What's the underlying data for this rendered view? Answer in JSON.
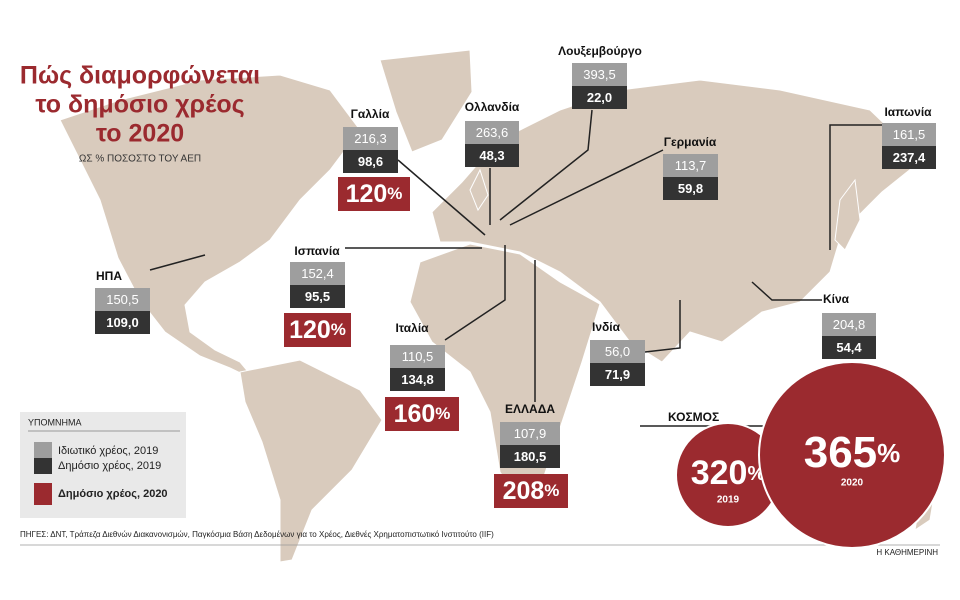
{
  "title": [
    "Πώς διαμορφώνεται",
    "το δημόσιο χρέος",
    "το 2020"
  ],
  "subtitle": "ΩΣ % ΠΟΣΟΣΤΟ ΤΟΥ ΑΕΠ",
  "countries": [
    {
      "name": "Γαλλία",
      "private": "216,3",
      "public": "98,6",
      "public_2020": {
        "value": "120",
        "unit": "%"
      }
    },
    {
      "name": "Ολλανδία",
      "private": "263,6",
      "public": "48,3"
    },
    {
      "name": "Λουξεμβούργο",
      "private": "393,5",
      "public": "22,0"
    },
    {
      "name": "Γερμανία",
      "private": "113,7",
      "public": "59,8"
    },
    {
      "name": "Ιαπωνία",
      "private": "161,5",
      "public": "237,4"
    },
    {
      "name": "Ισπανία",
      "private": "152,4",
      "public": "95,5",
      "public_2020": {
        "value": "120",
        "unit": "%"
      }
    },
    {
      "name": "ΗΠΑ",
      "private": "150,5",
      "public": "109,0"
    },
    {
      "name": "Κίνα",
      "private": "204,8",
      "public": "54,4"
    },
    {
      "name": "Ινδία",
      "private": "56,0",
      "public": "71,9"
    },
    {
      "name": "Ιταλία",
      "private": "110,5",
      "public": "134,8",
      "public_2020": {
        "value": "160",
        "unit": "%"
      }
    },
    {
      "name": "ΕΛΛΑΔΑ",
      "private": "107,9",
      "public": "180,5",
      "public_2020": {
        "value": "208",
        "unit": "%"
      }
    }
  ],
  "legend": {
    "title": "ΥΠΟΜΝΗΜΑ",
    "items": [
      "Ιδιωτικό χρέος, 2019",
      "Δημόσιο χρέος, 2019",
      "Δημόσιο χρέος, 2020"
    ]
  },
  "world": {
    "label": "ΚΟΣΜΟΣ",
    "circles": [
      {
        "value": "320",
        "unit": "%",
        "year": "2019"
      },
      {
        "value": "365",
        "unit": "%",
        "year": "2020"
      }
    ]
  },
  "source": "ΠΗΓΕΣ: ΔΝΤ, Τράπεζα Διεθνών Διακανονισμών, Παγκόσμια Βάση Δεδομένων για το Χρέος, Διεθνές Χρηματοπιστωτικό Ινστιτούτο (IIF)",
  "credit": "Η ΚΑΘΗΜΕΡΙΝΗ"
}
